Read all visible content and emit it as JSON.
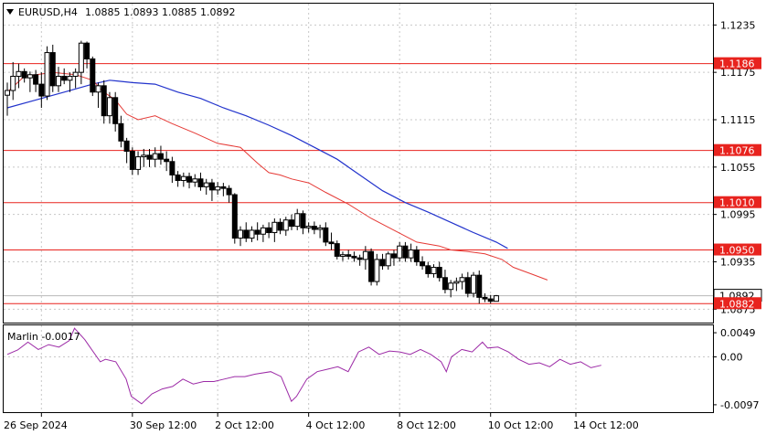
{
  "header": {
    "symbol": "EURUSD,H4",
    "ohlc": "1.0885 1.0893 1.0885 1.0892"
  },
  "indicator": {
    "label": "Marlin -0.0017",
    "ticks": [
      "0.0049",
      "0.00",
      "-0.0097"
    ],
    "tick_values": [
      0.0049,
      0.0,
      -0.0097
    ],
    "range": [
      -0.0112,
      0.0064
    ],
    "line_color": "#9c2aa6"
  },
  "colors": {
    "ma_fast": "#e53935",
    "ma_slow": "#2233cc",
    "level": "#e8231e",
    "grid": "#c8c8c8"
  },
  "chart_data": {
    "type": "candlestick",
    "yrange": [
      1.0858,
      1.1262
    ],
    "price_ticks": [
      "1.1235",
      "1.1175",
      "1.1115",
      "1.1055",
      "1.0995",
      "1.0935",
      "1.0875"
    ],
    "price_tick_values": [
      1.1235,
      1.1175,
      1.1115,
      1.1055,
      1.0995,
      1.0935,
      1.0875
    ],
    "x_labels": [
      "26 Sep 2024",
      "30 Sep 12:00",
      "2 Oct 12:00",
      "4 Oct 12:00",
      "8 Oct 12:00",
      "10 Oct 12:00",
      "14 Oct 12:00"
    ],
    "x_label_index": [
      6,
      22,
      37,
      53,
      69,
      85,
      100
    ],
    "current_price": "1.0892",
    "levels": [
      {
        "label": "1.1186",
        "value": 1.1186
      },
      {
        "label": "1.1076",
        "value": 1.1076
      },
      {
        "label": "1.1010",
        "value": 1.101
      },
      {
        "label": "1.0950",
        "value": 1.095
      },
      {
        "label": "1.0882",
        "value": 1.0882
      }
    ],
    "candles": [
      [
        1.1146,
        1.1162,
        1.112,
        1.1152
      ],
      [
        1.1152,
        1.1188,
        1.114,
        1.117
      ],
      [
        1.117,
        1.1186,
        1.1155,
        1.1176
      ],
      [
        1.1176,
        1.118,
        1.1162,
        1.1168
      ],
      [
        1.1168,
        1.1176,
        1.115,
        1.1172
      ],
      [
        1.1172,
        1.1178,
        1.115,
        1.116
      ],
      [
        1.116,
        1.1175,
        1.113,
        1.1145
      ],
      [
        1.1145,
        1.1208,
        1.114,
        1.12
      ],
      [
        1.12,
        1.121,
        1.115,
        1.1158
      ],
      [
        1.1158,
        1.1182,
        1.115,
        1.117
      ],
      [
        1.117,
        1.118,
        1.116,
        1.1165
      ],
      [
        1.1165,
        1.1175,
        1.115,
        1.117
      ],
      [
        1.117,
        1.118,
        1.1155,
        1.1175
      ],
      [
        1.1175,
        1.1215,
        1.116,
        1.1212
      ],
      [
        1.1212,
        1.1214,
        1.118,
        1.1192
      ],
      [
        1.1192,
        1.1195,
        1.1145,
        1.115
      ],
      [
        1.115,
        1.1162,
        1.113,
        1.1158
      ],
      [
        1.1158,
        1.1165,
        1.111,
        1.112
      ],
      [
        1.112,
        1.115,
        1.111,
        1.1143
      ],
      [
        1.1143,
        1.115,
        1.11,
        1.111
      ],
      [
        1.111,
        1.112,
        1.108,
        1.1088
      ],
      [
        1.1088,
        1.1092,
        1.106,
        1.1075
      ],
      [
        1.1075,
        1.108,
        1.1045,
        1.1052
      ],
      [
        1.1052,
        1.1075,
        1.1045,
        1.1068
      ],
      [
        1.1068,
        1.1078,
        1.1055,
        1.107
      ],
      [
        1.107,
        1.1078,
        1.1055,
        1.1065
      ],
      [
        1.1065,
        1.108,
        1.1055,
        1.1072
      ],
      [
        1.1072,
        1.1082,
        1.1058,
        1.1065
      ],
      [
        1.1065,
        1.1075,
        1.105,
        1.1062
      ],
      [
        1.1062,
        1.1068,
        1.1035,
        1.1045
      ],
      [
        1.1045,
        1.105,
        1.103,
        1.1038
      ],
      [
        1.1038,
        1.1048,
        1.103,
        1.1043
      ],
      [
        1.1043,
        1.1048,
        1.1028,
        1.1036
      ],
      [
        1.1036,
        1.1046,
        1.103,
        1.104
      ],
      [
        1.104,
        1.1048,
        1.1025,
        1.103
      ],
      [
        1.103,
        1.104,
        1.102,
        1.1035
      ],
      [
        1.1035,
        1.104,
        1.1012,
        1.1026
      ],
      [
        1.1026,
        1.1036,
        1.102,
        1.103
      ],
      [
        1.103,
        1.1035,
        1.1018,
        1.1028
      ],
      [
        1.1028,
        1.1032,
        1.101,
        1.102
      ],
      [
        1.102,
        1.1022,
        1.0958,
        1.0965
      ],
      [
        1.0965,
        1.098,
        1.0955,
        1.0975
      ],
      [
        1.0975,
        1.0985,
        1.096,
        1.0965
      ],
      [
        1.0965,
        1.098,
        1.096,
        1.0975
      ],
      [
        1.0975,
        1.0985,
        1.0962,
        1.097
      ],
      [
        1.097,
        1.0982,
        1.096,
        1.0978
      ],
      [
        1.0978,
        1.0985,
        1.0965,
        1.0972
      ],
      [
        1.0972,
        1.099,
        1.096,
        1.0985
      ],
      [
        1.0985,
        1.099,
        1.097,
        1.0975
      ],
      [
        1.0975,
        1.0992,
        1.0968,
        1.0988
      ],
      [
        1.0988,
        1.0995,
        1.0975,
        1.098
      ],
      [
        1.098,
        1.1002,
        1.0975,
        1.0996
      ],
      [
        1.0996,
        1.1,
        1.097,
        1.0978
      ],
      [
        1.0978,
        1.0985,
        1.0972,
        1.098
      ],
      [
        1.098,
        1.0986,
        1.097,
        1.0976
      ],
      [
        1.0976,
        1.0982,
        1.0965,
        1.0978
      ],
      [
        1.0978,
        1.0985,
        1.0955,
        1.096
      ],
      [
        1.096,
        1.0972,
        1.095,
        1.0958
      ],
      [
        1.0958,
        1.0962,
        1.0938,
        1.0942
      ],
      [
        1.0942,
        1.0948,
        1.0936,
        1.0944
      ],
      [
        1.0944,
        1.095,
        1.0938,
        1.0942
      ],
      [
        1.0942,
        1.0948,
        1.0935,
        1.094
      ],
      [
        1.094,
        1.0944,
        1.093,
        1.0938
      ],
      [
        1.0938,
        1.0955,
        1.0925,
        1.0948
      ],
      [
        1.0948,
        1.0952,
        1.0905,
        1.091
      ],
      [
        1.091,
        1.0945,
        1.0905,
        1.0938
      ],
      [
        1.0938,
        1.0945,
        1.0925,
        1.093
      ],
      [
        1.093,
        1.0948,
        1.0925,
        1.0945
      ],
      [
        1.0945,
        1.095,
        1.093,
        1.094
      ],
      [
        1.094,
        1.096,
        1.0935,
        1.0955
      ],
      [
        1.0955,
        1.096,
        1.0935,
        1.094
      ],
      [
        1.094,
        1.0958,
        1.0935,
        1.095
      ],
      [
        1.095,
        1.0955,
        1.093,
        1.0935
      ],
      [
        1.0935,
        1.0942,
        1.0925,
        1.093
      ],
      [
        1.093,
        1.0935,
        1.0915,
        1.092
      ],
      [
        1.092,
        1.0932,
        1.0915,
        1.0928
      ],
      [
        1.0928,
        1.0935,
        1.091,
        1.0915
      ],
      [
        1.0915,
        1.0925,
        1.0895,
        1.09
      ],
      [
        1.09,
        1.0912,
        1.089,
        1.0908
      ],
      [
        1.0908,
        1.0915,
        1.0898,
        1.091
      ],
      [
        1.091,
        1.092,
        1.09,
        1.0915
      ],
      [
        1.0915,
        1.0922,
        1.089,
        1.0895
      ],
      [
        1.0895,
        1.0922,
        1.089,
        1.0918
      ],
      [
        1.0918,
        1.0924,
        1.0882,
        1.089
      ],
      [
        1.089,
        1.0895,
        1.0884,
        1.0888
      ],
      [
        1.0888,
        1.0893,
        1.0882,
        1.0885
      ],
      [
        1.0885,
        1.0893,
        1.0885,
        1.0892
      ]
    ],
    "ma_fast": [
      [
        0,
        1.115
      ],
      [
        3,
        1.117
      ],
      [
        8,
        1.1175
      ],
      [
        12,
        1.1172
      ],
      [
        15,
        1.1165
      ],
      [
        17,
        1.115
      ],
      [
        19,
        1.114
      ],
      [
        21,
        1.1122
      ],
      [
        23,
        1.1115
      ],
      [
        26,
        1.112
      ],
      [
        29,
        1.111
      ],
      [
        33,
        1.1098
      ],
      [
        37,
        1.1085
      ],
      [
        41,
        1.108
      ],
      [
        44,
        1.106
      ],
      [
        46,
        1.1048
      ],
      [
        48,
        1.1045
      ],
      [
        50,
        1.104
      ],
      [
        53,
        1.1035
      ],
      [
        56,
        1.1023
      ],
      [
        60,
        1.1008
      ],
      [
        64,
        1.099
      ],
      [
        68,
        1.0975
      ],
      [
        72,
        1.096
      ],
      [
        76,
        1.0955
      ],
      [
        78,
        1.095
      ],
      [
        81,
        1.0948
      ],
      [
        84,
        1.0945
      ],
      [
        87,
        1.0938
      ],
      [
        89,
        1.0928
      ],
      [
        92,
        1.092
      ],
      [
        95,
        1.0912
      ]
    ],
    "ma_slow": [
      [
        0,
        1.113
      ],
      [
        5,
        1.114
      ],
      [
        10,
        1.115
      ],
      [
        15,
        1.116
      ],
      [
        18,
        1.1165
      ],
      [
        22,
        1.1162
      ],
      [
        26,
        1.116
      ],
      [
        30,
        1.115
      ],
      [
        34,
        1.1142
      ],
      [
        38,
        1.113
      ],
      [
        42,
        1.112
      ],
      [
        46,
        1.1108
      ],
      [
        50,
        1.1095
      ],
      [
        54,
        1.108
      ],
      [
        58,
        1.1065
      ],
      [
        62,
        1.1045
      ],
      [
        66,
        1.1025
      ],
      [
        70,
        1.101
      ],
      [
        74,
        1.0998
      ],
      [
        78,
        1.0985
      ],
      [
        82,
        1.0972
      ],
      [
        86,
        1.096
      ],
      [
        88,
        1.0952
      ]
    ],
    "oscillator": [
      [
        0,
        0.0005
      ],
      [
        2,
        0.0014
      ],
      [
        4,
        0.003
      ],
      [
        6,
        0.0015
      ],
      [
        8,
        0.0025
      ],
      [
        10,
        0.002
      ],
      [
        12,
        0.0033
      ],
      [
        13,
        0.0058
      ],
      [
        15,
        0.0035
      ],
      [
        16,
        0.002
      ],
      [
        18,
        -0.001
      ],
      [
        19,
        -0.0005
      ],
      [
        21,
        -0.001
      ],
      [
        23,
        -0.0045
      ],
      [
        24,
        -0.008
      ],
      [
        26,
        -0.0095
      ],
      [
        28,
        -0.0075
      ],
      [
        30,
        -0.0065
      ],
      [
        32,
        -0.006
      ],
      [
        34,
        -0.0045
      ],
      [
        36,
        -0.0055
      ],
      [
        38,
        -0.005
      ],
      [
        40,
        -0.005
      ],
      [
        42,
        -0.0045
      ],
      [
        44,
        -0.004
      ],
      [
        46,
        -0.004
      ],
      [
        48,
        -0.0035
      ],
      [
        51,
        -0.003
      ],
      [
        53,
        -0.004
      ],
      [
        55,
        -0.009
      ],
      [
        56,
        -0.008
      ],
      [
        58,
        -0.0045
      ],
      [
        60,
        -0.003
      ],
      [
        62,
        -0.0025
      ],
      [
        64,
        -0.002
      ],
      [
        66,
        -0.003
      ],
      [
        68,
        0.001
      ],
      [
        70,
        0.002
      ],
      [
        72,
        0.0005
      ],
      [
        74,
        0.0012
      ],
      [
        76,
        0.001
      ],
      [
        78,
        0.0005
      ],
      [
        80,
        0.0015
      ],
      [
        82,
        0.0005
      ],
      [
        84,
        -0.001
      ],
      [
        85,
        -0.003
      ],
      [
        86,
        0.0
      ],
      [
        88,
        0.0015
      ],
      [
        90,
        0.001
      ],
      [
        92,
        0.003
      ],
      [
        93,
        0.0018
      ],
      [
        95,
        0.002
      ],
      [
        97,
        0.001
      ],
      [
        99,
        -0.0005
      ],
      [
        101,
        -0.0015
      ],
      [
        103,
        -0.0012
      ],
      [
        105,
        -0.002
      ],
      [
        107,
        -0.0005
      ],
      [
        109,
        -0.0015
      ],
      [
        111,
        -0.001
      ],
      [
        113,
        -0.0022
      ],
      [
        115,
        -0.0017
      ]
    ]
  }
}
